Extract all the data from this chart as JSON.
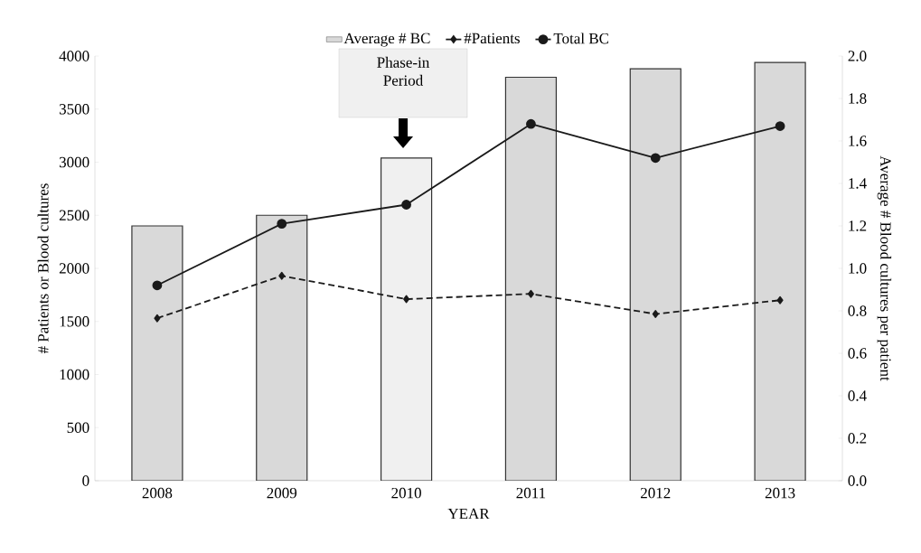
{
  "chart_data": {
    "type": "bar",
    "xlabel": "YEAR",
    "ylabel": "# Patients or Blood cultures",
    "y2label": "Average # Blood cultures per patient",
    "categories": [
      "2008",
      "2009",
      "2010",
      "2011",
      "2012",
      "2013"
    ],
    "series": [
      {
        "name": "Average # BC",
        "axis": "y2",
        "colors": [
          "#d9d9d9",
          "#d9d9d9",
          "#f0f0f0",
          "#d9d9d9",
          "#d9d9d9",
          "#d9d9d9"
        ],
        "color": "#d9d9d9",
        "values": [
          1.2,
          1.25,
          1.52,
          1.9,
          1.94,
          1.97
        ]
      },
      {
        "name": "#Patients",
        "type": "line",
        "color": "#1a1a1a",
        "marker": "diamond",
        "line_style": "dashed",
        "values": [
          1530,
          1930,
          1710,
          1760,
          1570,
          1700
        ]
      },
      {
        "name": "Total BC",
        "type": "line",
        "color": "#1a1a1a",
        "marker": "circle",
        "line_style": "solid",
        "values": [
          1840,
          2420,
          2600,
          3360,
          3040,
          3340
        ]
      }
    ],
    "ylim": [
      0,
      4000
    ],
    "yticks": [
      0,
      500,
      1000,
      1500,
      2000,
      2500,
      3000,
      3500,
      4000
    ],
    "y2lim": [
      0,
      2.0
    ],
    "y2ticks": [
      {
        "value": 0,
        "label": "0.0"
      },
      {
        "value": 0.2,
        "label": "0.2"
      },
      {
        "value": 0.4,
        "label": "0.4"
      },
      {
        "value": 0.6,
        "label": "0.6"
      },
      {
        "value": 0.8,
        "label": "0.8"
      },
      {
        "value": 1.0,
        "label": "1.0"
      },
      {
        "value": 1.2,
        "label": "1.2"
      },
      {
        "value": 1.4,
        "label": "1.4"
      },
      {
        "value": 1.6,
        "label": "1.6"
      },
      {
        "value": 1.8,
        "label": "1.8"
      },
      {
        "value": 2.0,
        "label": "2.0"
      }
    ],
    "annotations": [
      "Phase-in Period"
    ],
    "legend": "top",
    "grid": false
  }
}
